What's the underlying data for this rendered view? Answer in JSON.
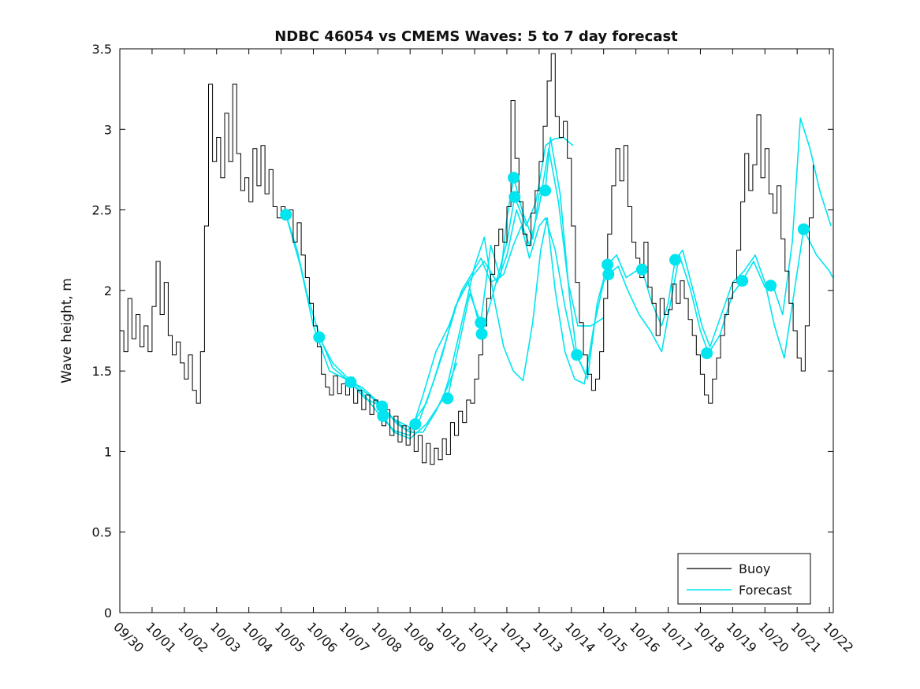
{
  "title": "NDBC 46054 vs CMEMS Waves: 5 to 7 day forecast",
  "legend": {
    "items": [
      {
        "label": "Buoy",
        "color": "#000000"
      },
      {
        "label": "Forecast",
        "color": "#00E5F0"
      }
    ]
  },
  "chart_data": {
    "type": "line",
    "title": "NDBC 46054 vs CMEMS Waves: 5 to 7 day forecast",
    "xlabel": "",
    "ylabel": "Wave height, m",
    "ylim": [
      0,
      3.5
    ],
    "y_ticks": [
      0,
      0.5,
      1,
      1.5,
      2,
      2.5,
      3,
      3.5
    ],
    "y_tick_labels": [
      "0",
      "0.5",
      "1",
      "1.5",
      "2",
      "2.5",
      "3",
      "3.5"
    ],
    "x_tick_labels": [
      "09/30",
      "10/01",
      "10/02",
      "10/03",
      "10/04",
      "10/05",
      "10/06",
      "10/07",
      "10/08",
      "10/09",
      "10/10",
      "10/11",
      "10/12",
      "10/13",
      "10/14",
      "10/15",
      "10/16",
      "10/17",
      "10/18",
      "10/19",
      "10/20",
      "10/21",
      "10/22"
    ],
    "x_span_days": 22.12,
    "x_tick_label_rotation_deg": 45,
    "grid": false,
    "legend_position": "lower right",
    "buoy_series": {
      "name": "Buoy",
      "color": "#000000",
      "x_start_day": 0,
      "x_step_days": 0.125,
      "units": "m",
      "values": [
        1.75,
        1.62,
        1.95,
        1.7,
        1.85,
        1.65,
        1.78,
        1.62,
        1.9,
        2.18,
        1.85,
        2.05,
        1.72,
        1.6,
        1.68,
        1.55,
        1.45,
        1.6,
        1.38,
        1.3,
        1.62,
        2.4,
        3.28,
        2.8,
        2.95,
        2.7,
        3.1,
        2.8,
        3.28,
        2.85,
        2.62,
        2.7,
        2.55,
        2.88,
        2.65,
        2.9,
        2.6,
        2.75,
        2.52,
        2.45,
        2.52,
        2.45,
        2.5,
        2.3,
        2.42,
        2.22,
        2.08,
        1.92,
        1.78,
        1.65,
        1.48,
        1.4,
        1.35,
        1.47,
        1.36,
        1.42,
        1.35,
        1.46,
        1.3,
        1.38,
        1.26,
        1.35,
        1.23,
        1.32,
        1.3,
        1.16,
        1.26,
        1.1,
        1.22,
        1.06,
        1.16,
        1.04,
        1.15,
        1.0,
        1.1,
        0.93,
        1.05,
        0.92,
        1.02,
        0.95,
        1.08,
        0.98,
        1.18,
        1.1,
        1.25,
        1.18,
        1.32,
        1.3,
        1.45,
        1.6,
        1.78,
        1.95,
        2.1,
        2.28,
        2.38,
        2.3,
        2.52,
        3.18,
        2.82,
        2.55,
        2.35,
        2.28,
        2.48,
        2.62,
        2.8,
        3.02,
        3.3,
        3.47,
        3.08,
        2.95,
        3.05,
        2.82,
        2.4,
        2.05,
        1.8,
        1.6,
        1.48,
        1.38,
        1.45,
        1.62,
        1.95,
        2.35,
        2.65,
        2.88,
        2.68,
        2.9,
        2.52,
        2.3,
        2.2,
        2.08,
        2.3,
        2.02,
        1.92,
        1.72,
        1.95,
        1.85,
        1.88,
        2.04,
        1.92,
        2.06,
        1.95,
        1.82,
        1.72,
        1.6,
        1.48,
        1.35,
        1.3,
        1.45,
        1.58,
        1.72,
        1.85,
        1.95,
        2.05,
        2.25,
        2.55,
        2.85,
        2.62,
        2.78,
        3.09,
        2.7,
        2.88,
        2.6,
        2.48,
        2.65,
        2.32,
        2.12,
        1.92,
        1.75,
        1.58,
        1.5,
        1.78,
        2.45,
        2.78
      ]
    },
    "forecast_series": {
      "name": "Forecast",
      "color": "#00E5F0",
      "units": "m",
      "runs": [
        {
          "name": "forecast-run-1",
          "points": [
            [
              5.15,
              2.47
            ],
            [
              5.5,
              2.25
            ],
            [
              5.8,
              1.98
            ],
            [
              6.2,
              1.71
            ],
            [
              6.6,
              1.52
            ],
            [
              7.16,
              1.43
            ],
            [
              7.6,
              1.33
            ],
            [
              8.13,
              1.28
            ],
            [
              8.6,
              1.17
            ],
            [
              9.0,
              1.12
            ],
            [
              9.4,
              1.12
            ],
            [
              9.8,
              1.25
            ],
            [
              10.16,
              1.4
            ],
            [
              10.45,
              1.55
            ]
          ]
        },
        {
          "name": "forecast-run-2",
          "points": [
            [
              5.15,
              2.47
            ],
            [
              5.6,
              2.15
            ],
            [
              6.0,
              1.78
            ],
            [
              6.5,
              1.5
            ],
            [
              7.0,
              1.45
            ],
            [
              7.5,
              1.37
            ],
            [
              8.0,
              1.24
            ],
            [
              8.5,
              1.13
            ],
            [
              9.0,
              1.1
            ],
            [
              9.4,
              1.35
            ],
            [
              9.8,
              1.62
            ],
            [
              10.2,
              1.78
            ],
            [
              10.6,
              2.0
            ],
            [
              10.9,
              2.1
            ],
            [
              11.2,
              2.2
            ],
            [
              11.5,
              2.05
            ],
            [
              11.9,
              2.1
            ],
            [
              12.2,
              2.28
            ],
            [
              12.45,
              2.4
            ],
            [
              12.7,
              2.2
            ],
            [
              13.0,
              2.4
            ],
            [
              13.2,
              2.45
            ],
            [
              13.5,
              2.25
            ],
            [
              13.8,
              1.9
            ],
            [
              14.1,
              1.62
            ],
            [
              14.4,
              1.5
            ]
          ]
        },
        {
          "name": "forecast-run-3",
          "points": [
            [
              6.18,
              1.71
            ],
            [
              6.6,
              1.55
            ],
            [
              7.0,
              1.47
            ],
            [
              7.4,
              1.4
            ],
            [
              7.9,
              1.32
            ],
            [
              8.4,
              1.22
            ],
            [
              8.9,
              1.13
            ],
            [
              9.3,
              1.2
            ],
            [
              9.7,
              1.42
            ],
            [
              10.1,
              1.68
            ],
            [
              10.5,
              1.95
            ],
            [
              10.9,
              2.08
            ],
            [
              11.3,
              2.18
            ],
            [
              11.7,
              2.05
            ],
            [
              12.0,
              2.22
            ],
            [
              12.3,
              2.5
            ],
            [
              12.7,
              2.28
            ],
            [
              13.0,
              2.52
            ],
            [
              13.3,
              2.88
            ],
            [
              13.6,
              2.55
            ],
            [
              13.9,
              2.05
            ],
            [
              14.2,
              1.78
            ],
            [
              14.6,
              1.78
            ],
            [
              15.0,
              1.83
            ]
          ]
        },
        {
          "name": "forecast-run-4",
          "points": [
            [
              7.16,
              1.43
            ],
            [
              7.5,
              1.4
            ],
            [
              8.0,
              1.31
            ],
            [
              8.5,
              1.2
            ],
            [
              9.0,
              1.15
            ],
            [
              9.5,
              1.3
            ],
            [
              10.0,
              1.6
            ],
            [
              10.4,
              1.9
            ],
            [
              10.8,
              2.05
            ],
            [
              11.22,
              1.73
            ],
            [
              11.6,
              2.0
            ],
            [
              12.0,
              2.3
            ],
            [
              12.24,
              2.58
            ],
            [
              12.6,
              2.4
            ],
            [
              12.9,
              2.55
            ],
            [
              13.2,
              2.9
            ],
            [
              13.45,
              2.94
            ],
            [
              13.75,
              2.95
            ],
            [
              14.05,
              2.9
            ]
          ]
        },
        {
          "name": "forecast-run-5",
          "points": [
            [
              8.16,
              1.22
            ],
            [
              8.5,
              1.12
            ],
            [
              9.0,
              1.08
            ],
            [
              9.5,
              1.17
            ],
            [
              10.0,
              1.32
            ],
            [
              10.2,
              1.45
            ],
            [
              10.6,
              1.8
            ],
            [
              11.0,
              2.15
            ],
            [
              11.3,
              2.33
            ],
            [
              11.6,
              1.95
            ],
            [
              11.9,
              1.65
            ],
            [
              12.2,
              1.5
            ],
            [
              12.5,
              1.44
            ],
            [
              12.8,
              1.8
            ],
            [
              13.05,
              2.25
            ],
            [
              13.25,
              2.45
            ],
            [
              13.5,
              2.0
            ],
            [
              13.8,
              1.62
            ],
            [
              14.1,
              1.45
            ],
            [
              14.4,
              1.42
            ],
            [
              14.7,
              1.78
            ],
            [
              15.0,
              2.05
            ],
            [
              15.15,
              2.1
            ],
            [
              15.45,
              2.15
            ],
            [
              15.75,
              2.0
            ],
            [
              16.1,
              1.85
            ],
            [
              16.45,
              1.75
            ],
            [
              16.8,
              1.62
            ],
            [
              17.1,
              1.95
            ],
            [
              17.35,
              2.22
            ],
            [
              17.7,
              2.0
            ],
            [
              18.0,
              1.75
            ],
            [
              18.25,
              1.61
            ],
            [
              18.6,
              1.72
            ],
            [
              19.0,
              1.98
            ],
            [
              19.3,
              2.06
            ],
            [
              19.65,
              2.18
            ],
            [
              20.0,
              2.02
            ],
            [
              20.25,
              2.03
            ],
            [
              20.55,
              1.85
            ],
            [
              20.85,
              2.3
            ],
            [
              21.1,
              3.07
            ],
            [
              21.4,
              2.88
            ],
            [
              21.7,
              2.62
            ],
            [
              22.05,
              2.4
            ]
          ]
        },
        {
          "name": "forecast-run-6",
          "points": [
            [
              10.16,
              1.33
            ],
            [
              10.5,
              1.65
            ],
            [
              10.85,
              1.98
            ],
            [
              11.19,
              1.8
            ],
            [
              11.5,
              2.28
            ],
            [
              11.8,
              2.08
            ],
            [
              12.0,
              2.45
            ],
            [
              12.21,
              2.7
            ],
            [
              12.5,
              2.48
            ],
            [
              12.8,
              2.32
            ],
            [
              13.0,
              2.6
            ],
            [
              13.19,
              2.62
            ],
            [
              13.35,
              2.95
            ],
            [
              13.65,
              2.6
            ],
            [
              13.95,
              1.95
            ],
            [
              14.17,
              1.6
            ],
            [
              14.5,
              1.45
            ],
            [
              14.8,
              1.92
            ],
            [
              15.12,
              2.16
            ],
            [
              15.4,
              2.22
            ],
            [
              15.7,
              2.08
            ],
            [
              16.0,
              2.12
            ],
            [
              16.19,
              2.13
            ],
            [
              16.5,
              1.92
            ],
            [
              16.8,
              1.78
            ],
            [
              17.0,
              1.92
            ],
            [
              17.22,
              2.19
            ],
            [
              17.45,
              2.25
            ],
            [
              17.75,
              2.02
            ],
            [
              18.05,
              1.78
            ],
            [
              18.3,
              1.65
            ],
            [
              18.65,
              1.85
            ],
            [
              19.0,
              2.05
            ],
            [
              19.35,
              2.12
            ],
            [
              19.7,
              2.22
            ],
            [
              20.0,
              2.05
            ],
            [
              20.3,
              1.78
            ],
            [
              20.6,
              1.58
            ],
            [
              20.9,
              1.98
            ],
            [
              21.2,
              2.38
            ],
            [
              21.6,
              2.22
            ],
            [
              22.0,
              2.12
            ],
            [
              22.1,
              2.08
            ]
          ]
        }
      ],
      "markers": [
        [
          5.15,
          2.47
        ],
        [
          6.18,
          1.71
        ],
        [
          7.16,
          1.43
        ],
        [
          8.13,
          1.28
        ],
        [
          8.16,
          1.22
        ],
        [
          9.16,
          1.17
        ],
        [
          10.16,
          1.33
        ],
        [
          11.19,
          1.8
        ],
        [
          11.22,
          1.73
        ],
        [
          12.21,
          2.7
        ],
        [
          12.24,
          2.58
        ],
        [
          13.19,
          2.62
        ],
        [
          14.17,
          1.6
        ],
        [
          15.12,
          2.16
        ],
        [
          15.15,
          2.1
        ],
        [
          16.19,
          2.13
        ],
        [
          17.22,
          2.19
        ],
        [
          18.2,
          1.61
        ],
        [
          19.3,
          2.06
        ],
        [
          20.18,
          2.03
        ],
        [
          21.2,
          2.38
        ]
      ]
    }
  }
}
